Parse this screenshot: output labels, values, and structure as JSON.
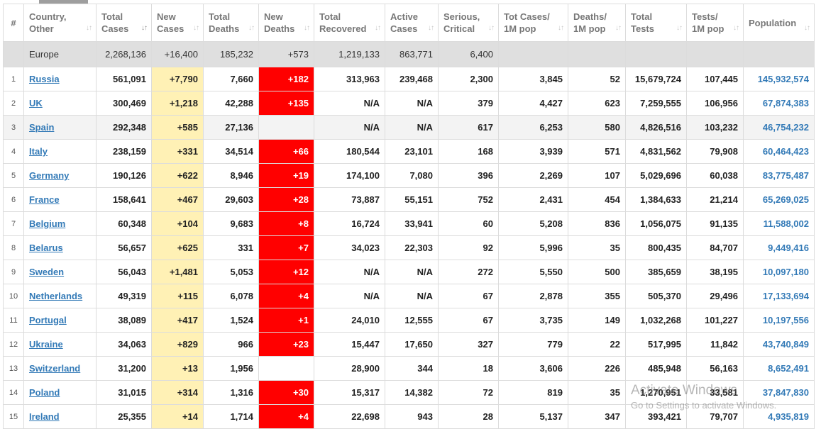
{
  "headers": [
    {
      "key": "idx",
      "label": "#"
    },
    {
      "key": "country",
      "label": "Country,\nOther"
    },
    {
      "key": "total_cases",
      "label": "Total\nCases"
    },
    {
      "key": "new_cases",
      "label": "New\nCases"
    },
    {
      "key": "total_deaths",
      "label": "Total\nDeaths"
    },
    {
      "key": "new_deaths",
      "label": "New\nDeaths"
    },
    {
      "key": "total_recovered",
      "label": "Total\nRecovered"
    },
    {
      "key": "active_cases",
      "label": "Active\nCases"
    },
    {
      "key": "serious",
      "label": "Serious,\nCritical"
    },
    {
      "key": "cases_per_1m",
      "label": "Tot Cases/\n1M pop"
    },
    {
      "key": "deaths_per_1m",
      "label": "Deaths/\n1M pop"
    },
    {
      "key": "total_tests",
      "label": "Total\nTests"
    },
    {
      "key": "tests_per_1m",
      "label": "Tests/\n1M pop"
    },
    {
      "key": "population",
      "label": "Population"
    }
  ],
  "total_row": {
    "country": "Europe",
    "total_cases": "2,268,136",
    "new_cases": "+16,400",
    "total_deaths": "185,232",
    "new_deaths": "+573",
    "total_recovered": "1,219,133",
    "active_cases": "863,771",
    "serious": "6,400",
    "cases_per_1m": "",
    "deaths_per_1m": "",
    "total_tests": "",
    "tests_per_1m": "",
    "population": ""
  },
  "rows": [
    {
      "idx": "1",
      "country": "Russia",
      "total_cases": "561,091",
      "new_cases": "+7,790",
      "total_deaths": "7,660",
      "new_deaths": "+182",
      "total_recovered": "313,963",
      "active_cases": "239,468",
      "serious": "2,300",
      "cases_per_1m": "3,845",
      "deaths_per_1m": "52",
      "total_tests": "15,679,724",
      "tests_per_1m": "107,445",
      "population": "145,932,574"
    },
    {
      "idx": "2",
      "country": "UK",
      "total_cases": "300,469",
      "new_cases": "+1,218",
      "total_deaths": "42,288",
      "new_deaths": "+135",
      "total_recovered": "N/A",
      "active_cases": "N/A",
      "serious": "379",
      "cases_per_1m": "4,427",
      "deaths_per_1m": "623",
      "total_tests": "7,259,555",
      "tests_per_1m": "106,956",
      "population": "67,874,383"
    },
    {
      "idx": "3",
      "country": "Spain",
      "total_cases": "292,348",
      "new_cases": "+585",
      "total_deaths": "27,136",
      "new_deaths": "",
      "total_recovered": "N/A",
      "active_cases": "N/A",
      "serious": "617",
      "cases_per_1m": "6,253",
      "deaths_per_1m": "580",
      "total_tests": "4,826,516",
      "tests_per_1m": "103,232",
      "population": "46,754,232"
    },
    {
      "idx": "4",
      "country": "Italy",
      "total_cases": "238,159",
      "new_cases": "+331",
      "total_deaths": "34,514",
      "new_deaths": "+66",
      "total_recovered": "180,544",
      "active_cases": "23,101",
      "serious": "168",
      "cases_per_1m": "3,939",
      "deaths_per_1m": "571",
      "total_tests": "4,831,562",
      "tests_per_1m": "79,908",
      "population": "60,464,423"
    },
    {
      "idx": "5",
      "country": "Germany",
      "total_cases": "190,126",
      "new_cases": "+622",
      "total_deaths": "8,946",
      "new_deaths": "+19",
      "total_recovered": "174,100",
      "active_cases": "7,080",
      "serious": "396",
      "cases_per_1m": "2,269",
      "deaths_per_1m": "107",
      "total_tests": "5,029,696",
      "tests_per_1m": "60,038",
      "population": "83,775,487"
    },
    {
      "idx": "6",
      "country": "France",
      "total_cases": "158,641",
      "new_cases": "+467",
      "total_deaths": "29,603",
      "new_deaths": "+28",
      "total_recovered": "73,887",
      "active_cases": "55,151",
      "serious": "752",
      "cases_per_1m": "2,431",
      "deaths_per_1m": "454",
      "total_tests": "1,384,633",
      "tests_per_1m": "21,214",
      "population": "65,269,025"
    },
    {
      "idx": "7",
      "country": "Belgium",
      "total_cases": "60,348",
      "new_cases": "+104",
      "total_deaths": "9,683",
      "new_deaths": "+8",
      "total_recovered": "16,724",
      "active_cases": "33,941",
      "serious": "60",
      "cases_per_1m": "5,208",
      "deaths_per_1m": "836",
      "total_tests": "1,056,075",
      "tests_per_1m": "91,135",
      "population": "11,588,002"
    },
    {
      "idx": "8",
      "country": "Belarus",
      "total_cases": "56,657",
      "new_cases": "+625",
      "total_deaths": "331",
      "new_deaths": "+7",
      "total_recovered": "34,023",
      "active_cases": "22,303",
      "serious": "92",
      "cases_per_1m": "5,996",
      "deaths_per_1m": "35",
      "total_tests": "800,435",
      "tests_per_1m": "84,707",
      "population": "9,449,416"
    },
    {
      "idx": "9",
      "country": "Sweden",
      "total_cases": "56,043",
      "new_cases": "+1,481",
      "total_deaths": "5,053",
      "new_deaths": "+12",
      "total_recovered": "N/A",
      "active_cases": "N/A",
      "serious": "272",
      "cases_per_1m": "5,550",
      "deaths_per_1m": "500",
      "total_tests": "385,659",
      "tests_per_1m": "38,195",
      "population": "10,097,180"
    },
    {
      "idx": "10",
      "country": "Netherlands",
      "total_cases": "49,319",
      "new_cases": "+115",
      "total_deaths": "6,078",
      "new_deaths": "+4",
      "total_recovered": "N/A",
      "active_cases": "N/A",
      "serious": "67",
      "cases_per_1m": "2,878",
      "deaths_per_1m": "355",
      "total_tests": "505,370",
      "tests_per_1m": "29,496",
      "population": "17,133,694"
    },
    {
      "idx": "11",
      "country": "Portugal",
      "total_cases": "38,089",
      "new_cases": "+417",
      "total_deaths": "1,524",
      "new_deaths": "+1",
      "total_recovered": "24,010",
      "active_cases": "12,555",
      "serious": "67",
      "cases_per_1m": "3,735",
      "deaths_per_1m": "149",
      "total_tests": "1,032,268",
      "tests_per_1m": "101,227",
      "population": "10,197,556"
    },
    {
      "idx": "12",
      "country": "Ukraine",
      "total_cases": "34,063",
      "new_cases": "+829",
      "total_deaths": "966",
      "new_deaths": "+23",
      "total_recovered": "15,447",
      "active_cases": "17,650",
      "serious": "327",
      "cases_per_1m": "779",
      "deaths_per_1m": "22",
      "total_tests": "517,995",
      "tests_per_1m": "11,842",
      "population": "43,740,849"
    },
    {
      "idx": "13",
      "country": "Switzerland",
      "total_cases": "31,200",
      "new_cases": "+13",
      "total_deaths": "1,956",
      "new_deaths": "",
      "total_recovered": "28,900",
      "active_cases": "344",
      "serious": "18",
      "cases_per_1m": "3,606",
      "deaths_per_1m": "226",
      "total_tests": "485,948",
      "tests_per_1m": "56,163",
      "population": "8,652,491"
    },
    {
      "idx": "14",
      "country": "Poland",
      "total_cases": "31,015",
      "new_cases": "+314",
      "total_deaths": "1,316",
      "new_deaths": "+30",
      "total_recovered": "15,317",
      "active_cases": "14,382",
      "serious": "72",
      "cases_per_1m": "819",
      "deaths_per_1m": "35",
      "total_tests": "1,270,951",
      "tests_per_1m": "33,581",
      "population": "37,847,830"
    },
    {
      "idx": "15",
      "country": "Ireland",
      "total_cases": "25,355",
      "new_cases": "+14",
      "total_deaths": "1,714",
      "new_deaths": "+4",
      "total_recovered": "22,698",
      "active_cases": "943",
      "serious": "28",
      "cases_per_1m": "5,137",
      "deaths_per_1m": "347",
      "total_tests": "393,421",
      "tests_per_1m": "79,707",
      "population": "4,935,819"
    }
  ],
  "watermark": {
    "line1": "Activate Windows",
    "line2": "Go to Settings to activate Windows."
  },
  "colors": {
    "new_cases_bg": "#fff1b5",
    "new_deaths_bg": "#ff0000",
    "link": "#337ab7",
    "total_row_bg": "#dfdfdf"
  },
  "icons": {
    "sort": "sort-arrows-icon",
    "sort_active": "sort-desc-icon"
  }
}
